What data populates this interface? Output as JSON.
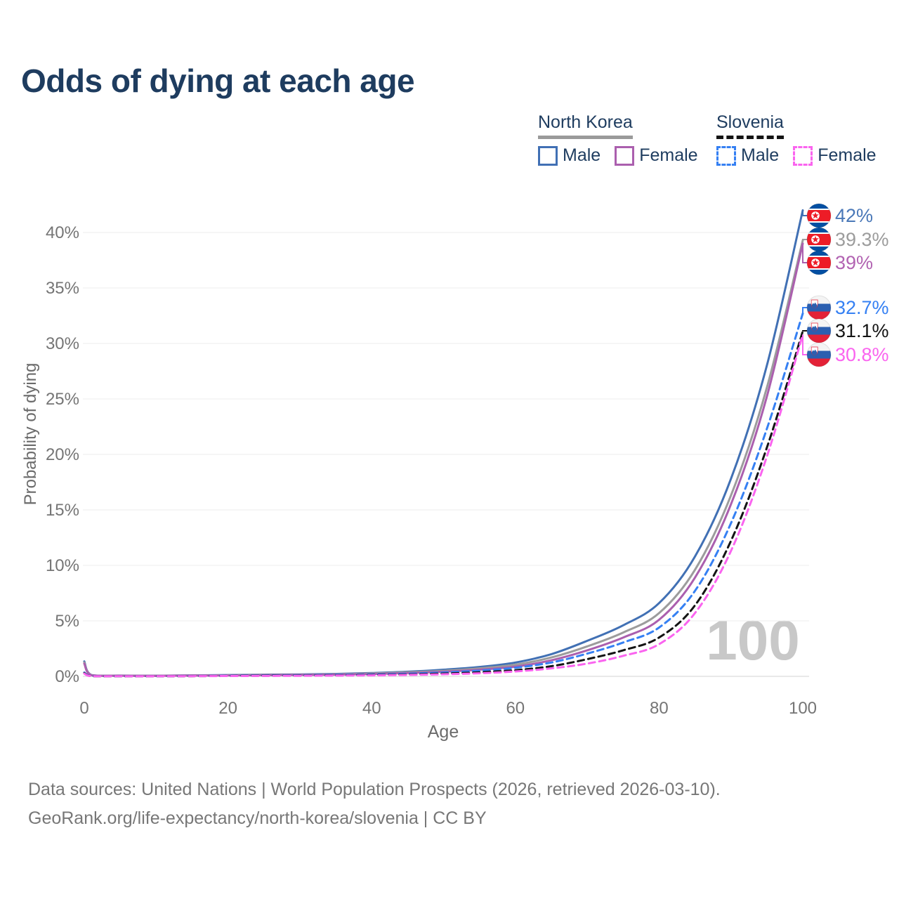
{
  "title": "Odds of dying at each age",
  "legend": {
    "groups": [
      {
        "name": "North Korea",
        "line_style": "solid",
        "line_color": "#9a9a9a",
        "items": [
          {
            "label": "Male",
            "color": "#4170b4",
            "dashed": false
          },
          {
            "label": "Female",
            "color": "#ab5fae",
            "dashed": false
          }
        ]
      },
      {
        "name": "Slovenia",
        "line_style": "dashed",
        "line_color": "#141414",
        "items": [
          {
            "label": "Male",
            "color": "#3580f3",
            "dashed": true
          },
          {
            "label": "Female",
            "color": "#fa64ef",
            "dashed": true
          }
        ]
      }
    ]
  },
  "axes": {
    "x_title": "Age",
    "y_title": "Probability of dying"
  },
  "chart_data": {
    "type": "line",
    "title": "Odds of dying at each age",
    "xlabel": "Age",
    "ylabel": "Probability of dying",
    "xlim": [
      0,
      100
    ],
    "ylim": [
      0,
      43
    ],
    "x_ticks": [
      0,
      20,
      40,
      60,
      80,
      100
    ],
    "y_ticks": [
      0,
      5,
      10,
      15,
      20,
      25,
      30,
      35,
      40
    ],
    "y_tick_suffix": "%",
    "grid": "horizontal",
    "legend_position": "top-right",
    "age_counter_watermark": "100",
    "series": [
      {
        "name": "North Korea Male",
        "flag": "north-korea",
        "style": "solid",
        "color": "#4170b4",
        "label_color": "#4a78b8",
        "end_label": "42%",
        "points": [
          [
            0,
            1.35
          ],
          [
            1,
            0.12
          ],
          [
            5,
            0.07
          ],
          [
            10,
            0.06
          ],
          [
            15,
            0.09
          ],
          [
            20,
            0.12
          ],
          [
            25,
            0.15
          ],
          [
            30,
            0.18
          ],
          [
            35,
            0.22
          ],
          [
            40,
            0.3
          ],
          [
            45,
            0.42
          ],
          [
            50,
            0.6
          ],
          [
            55,
            0.85
          ],
          [
            60,
            1.25
          ],
          [
            65,
            2.0
          ],
          [
            70,
            3.2
          ],
          [
            75,
            4.6
          ],
          [
            80,
            6.6
          ],
          [
            85,
            10.8
          ],
          [
            90,
            17.8
          ],
          [
            95,
            28.0
          ],
          [
            100,
            42.0
          ]
        ]
      },
      {
        "name": "North Korea Both sexes",
        "flag": "north-korea",
        "style": "solid",
        "color": "#9c9c9c",
        "label_color": "#9c9c9c",
        "end_label": "39.3%",
        "points": [
          [
            0,
            1.25
          ],
          [
            1,
            0.11
          ],
          [
            5,
            0.06
          ],
          [
            10,
            0.05
          ],
          [
            15,
            0.08
          ],
          [
            20,
            0.1
          ],
          [
            25,
            0.13
          ],
          [
            30,
            0.15
          ],
          [
            35,
            0.19
          ],
          [
            40,
            0.26
          ],
          [
            45,
            0.36
          ],
          [
            50,
            0.5
          ],
          [
            55,
            0.72
          ],
          [
            60,
            1.05
          ],
          [
            65,
            1.7
          ],
          [
            70,
            2.7
          ],
          [
            75,
            3.95
          ],
          [
            80,
            5.7
          ],
          [
            85,
            9.6
          ],
          [
            90,
            16.3
          ],
          [
            95,
            26.0
          ],
          [
            100,
            39.3
          ]
        ]
      },
      {
        "name": "North Korea Female",
        "flag": "north-korea",
        "style": "solid",
        "color": "#ab5fae",
        "label_color": "#b263b2",
        "end_label": "39%",
        "points": [
          [
            0,
            1.15
          ],
          [
            1,
            0.1
          ],
          [
            5,
            0.06
          ],
          [
            10,
            0.05
          ],
          [
            15,
            0.07
          ],
          [
            20,
            0.09
          ],
          [
            25,
            0.11
          ],
          [
            30,
            0.13
          ],
          [
            35,
            0.16
          ],
          [
            40,
            0.21
          ],
          [
            45,
            0.3
          ],
          [
            50,
            0.42
          ],
          [
            55,
            0.6
          ],
          [
            60,
            0.88
          ],
          [
            65,
            1.45
          ],
          [
            70,
            2.35
          ],
          [
            75,
            3.5
          ],
          [
            80,
            5.1
          ],
          [
            85,
            8.9
          ],
          [
            90,
            15.5
          ],
          [
            95,
            25.2
          ],
          [
            100,
            39.0
          ]
        ]
      },
      {
        "name": "Slovenia Male",
        "flag": "slovenia",
        "style": "dashed",
        "color": "#3580f3",
        "label_color": "#3580f3",
        "end_label": "32.7%",
        "points": [
          [
            0,
            0.35
          ],
          [
            1,
            0.03
          ],
          [
            5,
            0.01
          ],
          [
            10,
            0.01
          ],
          [
            15,
            0.03
          ],
          [
            20,
            0.06
          ],
          [
            25,
            0.08
          ],
          [
            30,
            0.1
          ],
          [
            35,
            0.13
          ],
          [
            40,
            0.17
          ],
          [
            45,
            0.24
          ],
          [
            50,
            0.35
          ],
          [
            55,
            0.52
          ],
          [
            60,
            0.78
          ],
          [
            65,
            1.25
          ],
          [
            70,
            2.05
          ],
          [
            75,
            3.05
          ],
          [
            80,
            4.4
          ],
          [
            85,
            7.7
          ],
          [
            90,
            13.8
          ],
          [
            95,
            22.3
          ],
          [
            100,
            32.7
          ]
        ]
      },
      {
        "name": "Slovenia Both sexes",
        "flag": "slovenia",
        "style": "dashed",
        "color": "#141414",
        "label_color": "#141414",
        "end_label": "31.1%",
        "points": [
          [
            0,
            0.3
          ],
          [
            1,
            0.02
          ],
          [
            5,
            0.01
          ],
          [
            10,
            0.01
          ],
          [
            15,
            0.02
          ],
          [
            20,
            0.04
          ],
          [
            25,
            0.06
          ],
          [
            30,
            0.07
          ],
          [
            35,
            0.09
          ],
          [
            40,
            0.12
          ],
          [
            45,
            0.17
          ],
          [
            50,
            0.25
          ],
          [
            55,
            0.37
          ],
          [
            60,
            0.56
          ],
          [
            65,
            0.92
          ],
          [
            70,
            1.55
          ],
          [
            75,
            2.35
          ],
          [
            80,
            3.5
          ],
          [
            85,
            6.4
          ],
          [
            90,
            12.2
          ],
          [
            95,
            20.6
          ],
          [
            100,
            31.1
          ]
        ]
      },
      {
        "name": "Slovenia Female",
        "flag": "slovenia",
        "style": "dashed",
        "color": "#fa64ef",
        "label_color": "#fa64ef",
        "end_label": "30.8%",
        "points": [
          [
            0,
            0.25
          ],
          [
            1,
            0.02
          ],
          [
            5,
            0.01
          ],
          [
            10,
            0.01
          ],
          [
            15,
            0.02
          ],
          [
            20,
            0.03
          ],
          [
            25,
            0.04
          ],
          [
            30,
            0.05
          ],
          [
            35,
            0.07
          ],
          [
            40,
            0.09
          ],
          [
            45,
            0.13
          ],
          [
            50,
            0.19
          ],
          [
            55,
            0.28
          ],
          [
            60,
            0.44
          ],
          [
            65,
            0.72
          ],
          [
            70,
            1.15
          ],
          [
            75,
            1.85
          ],
          [
            80,
            2.9
          ],
          [
            85,
            5.7
          ],
          [
            90,
            11.3
          ],
          [
            95,
            19.8
          ],
          [
            100,
            30.8
          ]
        ]
      }
    ]
  },
  "colors": {
    "title": "#1e3c5f",
    "grid": "#ededed",
    "baseline": "#e2e2e2",
    "tick_text": "#757575",
    "axis_title": "#6b6b6b",
    "watermark": "#c8c8c8",
    "footer": "#777777",
    "nk_flag_blue": "#024FA2",
    "nk_flag_red": "#ED1C27",
    "si_flag_blue": "#2b5fb0",
    "si_flag_red": "#e32237"
  },
  "footer": {
    "line1": "Data sources: United Nations | World Population Prospects (2026, retrieved 2026-03-10).",
    "line2": "GeoRank.org/life-expectancy/north-korea/slovenia | CC BY"
  }
}
